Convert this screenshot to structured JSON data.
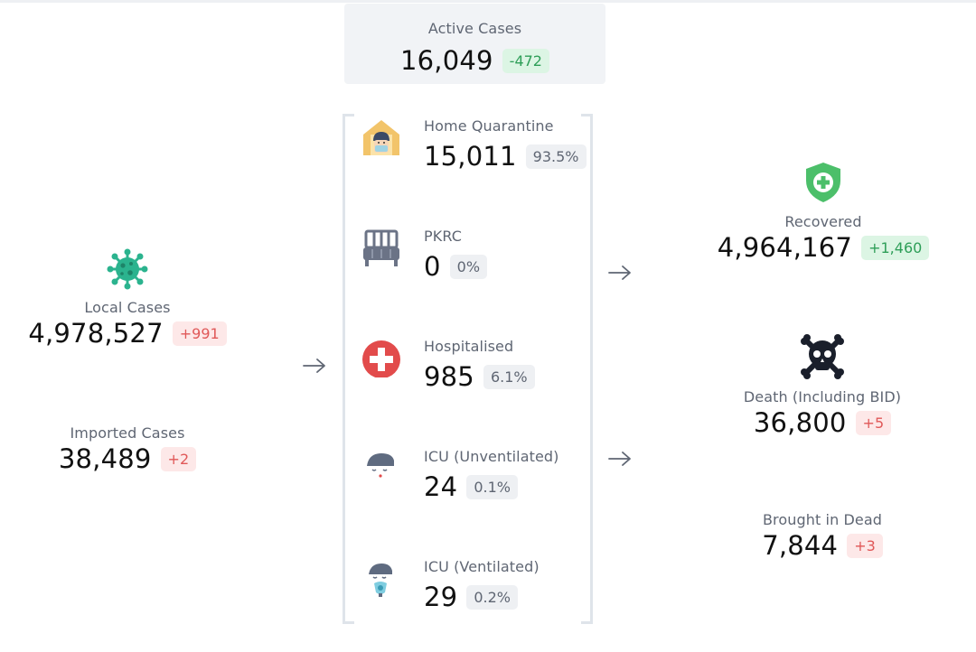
{
  "active": {
    "label": "Active Cases",
    "value": "16,049",
    "change": "-472"
  },
  "local": {
    "label": "Local Cases",
    "value": "4,978,527",
    "change": "+991"
  },
  "imported": {
    "label": "Imported Cases",
    "value": "38,489",
    "change": "+2"
  },
  "breakdown": [
    {
      "icon": "home-quarantine-icon",
      "label": "Home Quarantine",
      "value": "15,011",
      "share": "93.5%"
    },
    {
      "icon": "bed-icon",
      "label": "PKRC",
      "value": "0",
      "share": "0%"
    },
    {
      "icon": "hospital-cross-icon",
      "label": "Hospitalised",
      "value": "985",
      "share": "6.1%"
    },
    {
      "icon": "icu-unventilated-icon",
      "label": "ICU (Unventilated)",
      "value": "24",
      "share": "0.1%"
    },
    {
      "icon": "icu-ventilated-icon",
      "label": "ICU (Ventilated)",
      "value": "29",
      "share": "0.2%"
    }
  ],
  "recovered": {
    "label": "Recovered",
    "value": "4,964,167",
    "change": "+1,460"
  },
  "death": {
    "label": "Death (Including BID)",
    "value": "36,800",
    "change": "+5"
  },
  "bid": {
    "label": "Brought in Dead",
    "value": "7,844",
    "change": "+3"
  },
  "colors": {
    "virus": "#2bb38e",
    "shield": "#4cbf6a",
    "cross": "#e24b4b",
    "skull": "#1a1f2b",
    "increase_red": "#e05858",
    "decrease_green": "#2e9e58"
  }
}
